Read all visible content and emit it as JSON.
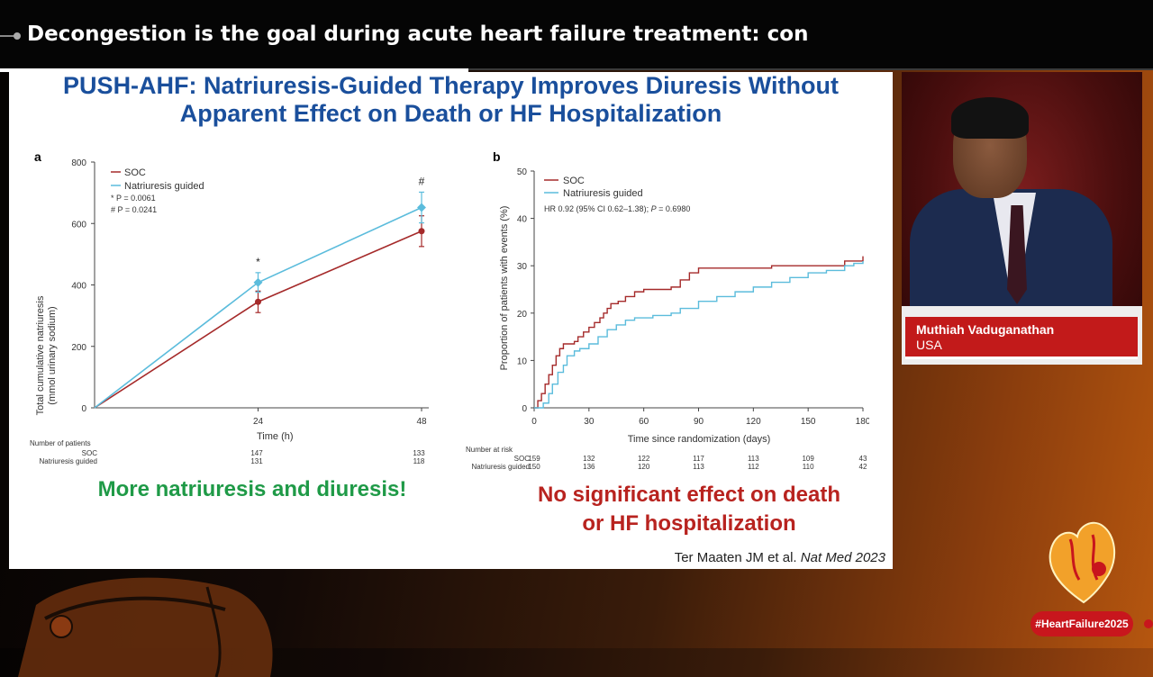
{
  "ticker": {
    "text": "Decongestion is the goal during acute heart failure treatment: con"
  },
  "slide": {
    "title_line1": "PUSH-AHF: Natriuresis-Guided Therapy Improves Diuresis Without",
    "title_line2": "Apparent Effect on Death or HF Hospitalization",
    "caption_left": "More natriuresis and diuresis!",
    "caption_right_line1": "No significant effect on death",
    "caption_right_line2": "or HF hospitalization",
    "citation_author": "Ter Maaten JM et al.",
    "citation_journal": "Nat Med 2023"
  },
  "speaker": {
    "name": "Muthiah Vaduganathan",
    "country": "USA"
  },
  "hashtag": "#HeartFailure2025",
  "colors": {
    "soc": "#a52a2a",
    "natriuresis": "#5bbcdc",
    "title": "#1a4f9c",
    "caption_left": "#1f9a47",
    "caption_right": "#b8231f",
    "brand_red": "#c8161d"
  },
  "chart_data": [
    {
      "type": "line",
      "panel": "a",
      "xlabel": "Time (h)",
      "ylabel_line1": "Total cumulative natriuresis",
      "ylabel_line2": "(mmol urinary sodium)",
      "x": [
        0,
        24,
        48
      ],
      "xticks": [
        "24",
        "48"
      ],
      "ylim": [
        0,
        800
      ],
      "yticks": [
        "0",
        "200",
        "400",
        "600",
        "800"
      ],
      "legend": [
        "SOC",
        "Natriuresis guided"
      ],
      "p1": "* P = 0.0061",
      "p2": "# P = 0.0241",
      "markers": [
        "*",
        "#"
      ],
      "series": [
        {
          "name": "SOC",
          "values": [
            0,
            345,
            575
          ],
          "err": [
            0,
            35,
            50
          ]
        },
        {
          "name": "Natriuresis guided",
          "values": [
            0,
            408,
            652
          ],
          "err": [
            0,
            32,
            50
          ]
        }
      ],
      "number_of_patients": {
        "label": "Number of patients",
        "rows": [
          {
            "name": "SOC",
            "values": [
              "147",
              "133"
            ]
          },
          {
            "name": "Natriuresis guided",
            "values": [
              "131",
              "118"
            ]
          }
        ]
      }
    },
    {
      "type": "line",
      "panel": "b",
      "xlabel": "Time since randomization (days)",
      "ylabel": "Proportion of patients with events (%)",
      "xlim": [
        0,
        180
      ],
      "ylim": [
        0,
        50
      ],
      "xticks": [
        "0",
        "30",
        "60",
        "90",
        "120",
        "150",
        "180"
      ],
      "yticks": [
        "0",
        "10",
        "20",
        "30",
        "40",
        "50"
      ],
      "legend": [
        "SOC",
        "Natriuresis guided"
      ],
      "hr_prefix": "HR 0.92 (95% CI 0.62–1.38); ",
      "hr_p": "P",
      "hr_suffix": " = 0.6980",
      "series": [
        {
          "name": "SOC",
          "points": [
            [
              0,
              0
            ],
            [
              2,
              1.5
            ],
            [
              4,
              3
            ],
            [
              6,
              5
            ],
            [
              8,
              7
            ],
            [
              10,
              9
            ],
            [
              12,
              11
            ],
            [
              14,
              12.5
            ],
            [
              16,
              13.5
            ],
            [
              20,
              13.5
            ],
            [
              22,
              14
            ],
            [
              24,
              15
            ],
            [
              27,
              16
            ],
            [
              30,
              17
            ],
            [
              33,
              18
            ],
            [
              36,
              19
            ],
            [
              38,
              20
            ],
            [
              40,
              21
            ],
            [
              42,
              22
            ],
            [
              46,
              22.5
            ],
            [
              50,
              23.5
            ],
            [
              55,
              24.5
            ],
            [
              60,
              25
            ],
            [
              75,
              25.5
            ],
            [
              80,
              27
            ],
            [
              85,
              28.5
            ],
            [
              90,
              29.5
            ],
            [
              115,
              29.5
            ],
            [
              130,
              30
            ],
            [
              170,
              31
            ],
            [
              178,
              31
            ],
            [
              180,
              32
            ]
          ]
        },
        {
          "name": "Natriuresis guided",
          "points": [
            [
              0,
              0
            ],
            [
              5,
              1
            ],
            [
              8,
              3
            ],
            [
              10,
              5
            ],
            [
              13,
              7.5
            ],
            [
              16,
              9
            ],
            [
              18,
              11
            ],
            [
              22,
              12
            ],
            [
              25,
              12.5
            ],
            [
              30,
              13.5
            ],
            [
              35,
              15
            ],
            [
              40,
              16.5
            ],
            [
              45,
              17.5
            ],
            [
              50,
              18.5
            ],
            [
              55,
              19
            ],
            [
              65,
              19.5
            ],
            [
              75,
              20
            ],
            [
              80,
              21
            ],
            [
              90,
              22.5
            ],
            [
              100,
              23.5
            ],
            [
              110,
              24.5
            ],
            [
              120,
              25.5
            ],
            [
              130,
              26.5
            ],
            [
              140,
              27.5
            ],
            [
              150,
              28.5
            ],
            [
              160,
              29
            ],
            [
              170,
              30
            ],
            [
              175,
              30.5
            ],
            [
              180,
              31
            ]
          ]
        }
      ],
      "number_at_risk": {
        "label": "Number at risk",
        "rows": [
          {
            "name": "SOC",
            "values": [
              "159",
              "132",
              "122",
              "117",
              "113",
              "109",
              "43"
            ]
          },
          {
            "name": "Natriuresis guided",
            "values": [
              "150",
              "136",
              "120",
              "113",
              "112",
              "110",
              "42"
            ]
          }
        ]
      }
    }
  ]
}
